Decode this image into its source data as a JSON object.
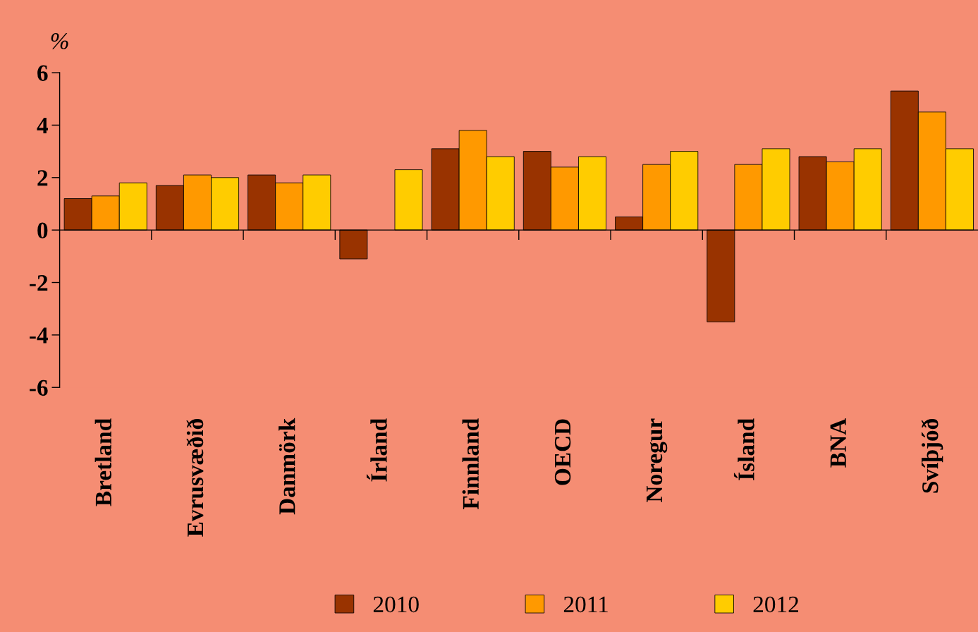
{
  "chart_data": {
    "type": "bar",
    "ylabel": "%",
    "categories": [
      "Bretland",
      "Evrusvæðið",
      "Danmörk",
      "Írland",
      "Finnland",
      "OECD",
      "Noregur",
      "Ísland",
      "BNA",
      "Svíþjóð"
    ],
    "series": [
      {
        "name": "2010",
        "color": "#993300",
        "values": [
          1.2,
          1.7,
          2.1,
          -1.1,
          3.1,
          3.0,
          0.5,
          -3.5,
          2.8,
          5.3
        ]
      },
      {
        "name": "2011",
        "color": "#ff9900",
        "values": [
          1.3,
          2.1,
          1.8,
          null,
          3.8,
          2.4,
          2.5,
          2.5,
          2.6,
          4.5
        ]
      },
      {
        "name": "2012",
        "color": "#ffcc00",
        "values": [
          1.8,
          2.0,
          2.1,
          2.3,
          2.8,
          2.8,
          3.0,
          3.1,
          3.1,
          3.1
        ]
      }
    ],
    "ylim": [
      -6,
      6
    ],
    "yticks": [
      -6,
      -4,
      -2,
      0,
      2,
      4,
      6
    ],
    "legend": "bottom"
  }
}
